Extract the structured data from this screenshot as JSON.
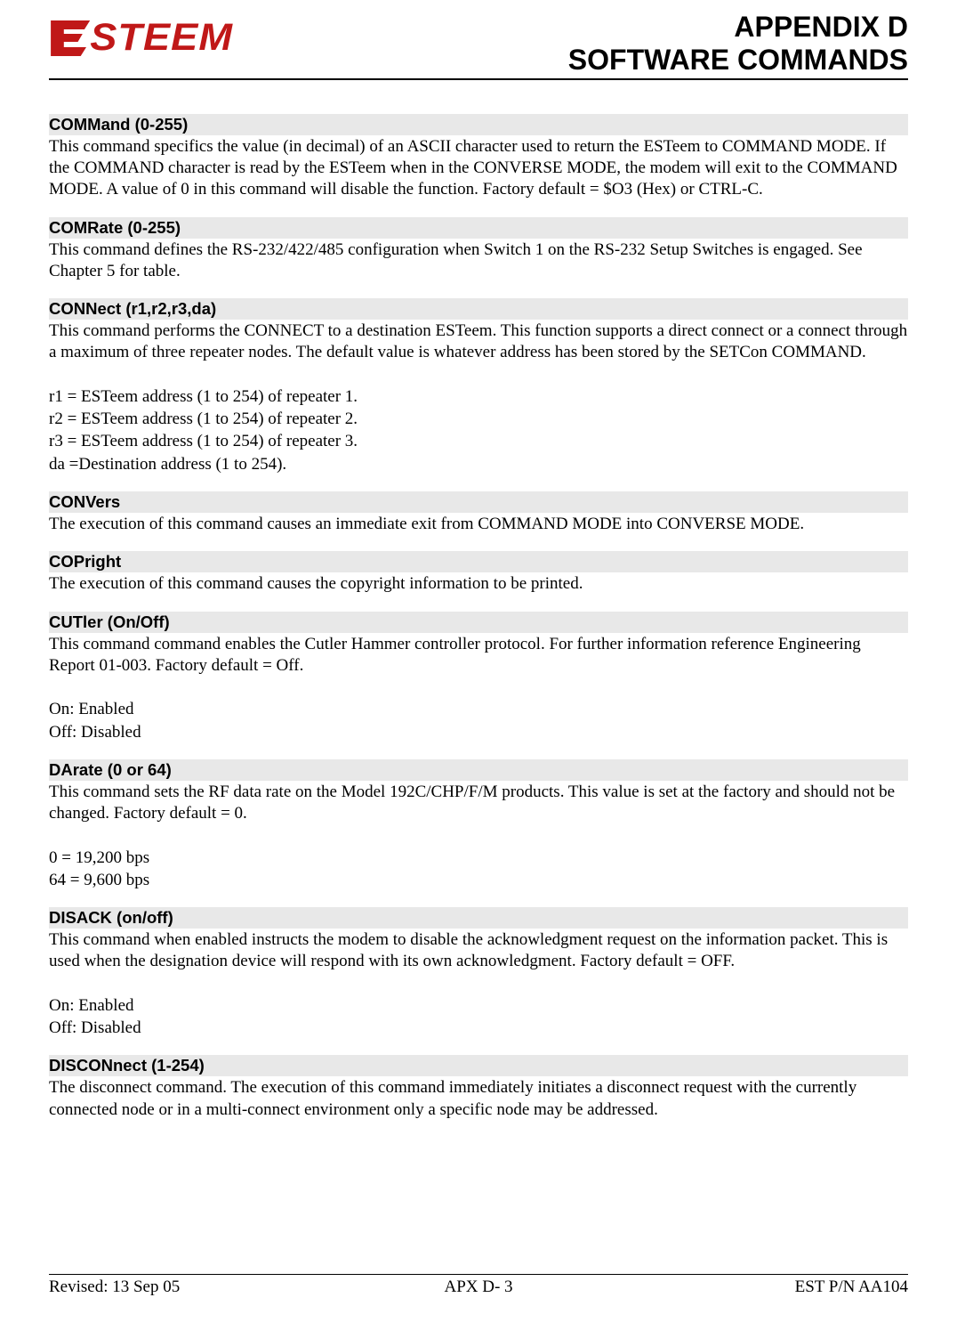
{
  "header": {
    "logo_text": "ESTEEM",
    "title_line1": "APPENDIX D",
    "title_line2": "SOFTWARE COMMANDS"
  },
  "sections": [
    {
      "title": "COMMand (0-255)",
      "paragraphs": [
        "This command specifics the value (in decimal) of an ASCII character used to return the ESTeem to COMMAND MODE.  If the COMMAND character is read by the ESTeem when in the CONVERSE MODE, the modem will exit to the COMMAND MODE.  A value of 0 in this command will disable the function.  Factory default = $O3 (Hex) or CTRL-C."
      ]
    },
    {
      "title": "COMRate (0-255)",
      "paragraphs": [
        "This command defines the RS-232/422/485 configuration when Switch 1 on the RS-232 Setup Switches is engaged.  See Chapter 5 for table."
      ]
    },
    {
      "title": "CONNect (r1,r2,r3,da)",
      "paragraphs": [
        "This command performs the CONNECT to a destination ESTeem.  This function supports a direct connect or a connect through a maximum of three repeater nodes.  The default value is whatever address has been stored by the SETCon COMMAND.",
        "",
        "r1 = ESTeem address (1 to 254) of repeater 1.",
        "r2 = ESTeem address (1 to 254) of repeater 2.",
        "r3 = ESTeem address (1 to 254) of repeater 3.",
        "da =Destination address (1 to 254)."
      ]
    },
    {
      "title": "CONVers",
      "paragraphs": [
        "The execution of this command causes an immediate exit from COMMAND MODE into CONVERSE MODE."
      ]
    },
    {
      "title": "COPright",
      "paragraphs": [
        "The execution of this command causes the copyright information to be printed."
      ]
    },
    {
      "title": "CUTler (On/Off)",
      "paragraphs": [
        "This command command enables the Cutler Hammer controller protocol.  For further information reference Engineering Report 01-003.  Factory default = Off.",
        "",
        "On:  Enabled",
        "Off: Disabled"
      ]
    },
    {
      "title": "DArate (0 or 64)",
      "paragraphs": [
        "This command sets the RF data rate on the Model 192C/CHP/F/M products.  This value is set at the factory and should not be changed.  Factory default = 0.",
        "",
        "0   = 19,200 bps",
        "64 = 9,600 bps"
      ]
    },
    {
      "title": "DISACK (on/off)",
      "paragraphs": [
        "This command when enabled instructs the modem to disable the acknowledgment request on the information packet. This is used when the designation device will respond with its own acknowledgment.  Factory default = OFF.",
        "",
        "On:  Enabled",
        "Off: Disabled"
      ]
    },
    {
      "title": "DISCONnect (1-254)",
      "paragraphs": [
        "The disconnect command.  The execution of this command immediately initiates a disconnect request with the currently connected node or in a multi-connect environment only a specific node may be addressed."
      ]
    }
  ],
  "footer": {
    "left": "Revised: 13 Sep 05",
    "center": "APX D- 3",
    "right": "EST P/N AA104"
  },
  "colors": {
    "logo_red": "#c01818",
    "section_bg": "#e8e8e8",
    "text": "#000000",
    "page_bg": "#ffffff"
  }
}
